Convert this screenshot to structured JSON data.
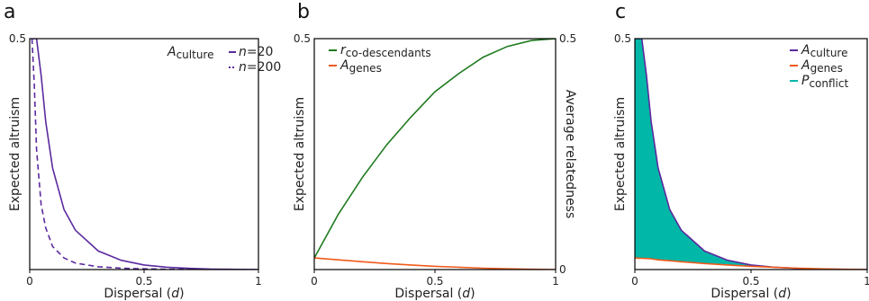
{
  "chart_data": [
    {
      "panel": "a",
      "type": "line",
      "xlabel": "Dispersal (d)",
      "ylabel": "Expected altruism",
      "xlim": [
        0,
        1
      ],
      "ylim": [
        0,
        0.5
      ],
      "xticks": [
        "0",
        "0.5",
        "1"
      ],
      "yticks": [
        "0.5"
      ],
      "legend_title": "A culture",
      "legend_position": "top-right",
      "x": [
        0.01,
        0.02,
        0.03,
        0.05,
        0.07,
        0.1,
        0.15,
        0.2,
        0.3,
        0.4,
        0.5,
        0.6,
        0.7,
        0.8,
        0.9,
        1.0
      ],
      "series": [
        {
          "name": "n=20",
          "color": "#5b2a9e",
          "style": "solid",
          "values": [
            0.5,
            0.5,
            0.5,
            0.42,
            0.32,
            0.22,
            0.13,
            0.085,
            0.04,
            0.02,
            0.01,
            0.005,
            0.0025,
            0.001,
            0.0004,
            0.0
          ]
        },
        {
          "name": "n=200",
          "color": "#5b2a9e",
          "style": "dashed",
          "values": [
            0.5,
            0.4,
            0.26,
            0.14,
            0.09,
            0.05,
            0.025,
            0.014,
            0.006,
            0.003,
            0.0015,
            0.0006,
            0.0003,
            0.0001,
            0.0,
            0.0
          ]
        }
      ]
    },
    {
      "panel": "b",
      "type": "line",
      "xlabel": "Dispersal (d)",
      "ylabel": "Expected altruism",
      "y2label": "Average relatedness",
      "xlim": [
        0,
        1
      ],
      "ylim": [
        0,
        0.5
      ],
      "xticks": [
        "0",
        "0.5",
        "1"
      ],
      "yticks": [
        "0.5"
      ],
      "y2ticks": [
        "0",
        "0.5"
      ],
      "legend_position": "top-left",
      "x": [
        0.0,
        0.1,
        0.2,
        0.3,
        0.4,
        0.5,
        0.6,
        0.7,
        0.8,
        0.9,
        1.0
      ],
      "series": [
        {
          "name": "r co-descendants",
          "color": "#1e7a1e",
          "axis": "right",
          "values": [
            0.025,
            0.12,
            0.2,
            0.27,
            0.33,
            0.385,
            0.425,
            0.46,
            0.483,
            0.496,
            0.5
          ]
        },
        {
          "name": "A genes",
          "color": "#f05a1a",
          "axis": "left",
          "values": [
            0.025,
            0.021,
            0.017,
            0.013,
            0.01,
            0.007,
            0.005,
            0.003,
            0.0015,
            0.0005,
            0.0
          ]
        }
      ]
    },
    {
      "panel": "c",
      "type": "area",
      "xlabel": "Dispersal (d)",
      "ylabel": "Expected altruism",
      "xlim": [
        0,
        1
      ],
      "ylim": [
        0,
        0.5
      ],
      "xticks": [
        "0",
        "0.5",
        "1"
      ],
      "yticks": [
        "0.5"
      ],
      "legend_position": "top-right",
      "x": [
        0.0,
        0.02,
        0.03,
        0.05,
        0.07,
        0.1,
        0.15,
        0.2,
        0.3,
        0.4,
        0.5,
        0.6,
        0.7,
        0.8,
        0.9,
        1.0
      ],
      "series": [
        {
          "name": "A culture",
          "color": "#5b2a9e",
          "values": [
            0.5,
            0.5,
            0.5,
            0.42,
            0.32,
            0.22,
            0.13,
            0.085,
            0.04,
            0.02,
            0.01,
            0.005,
            0.0025,
            0.001,
            0.0004,
            0.0
          ]
        },
        {
          "name": "A genes",
          "color": "#f05a1a",
          "values": [
            0.025,
            0.0246,
            0.0244,
            0.024,
            0.0234,
            0.021,
            0.019,
            0.017,
            0.013,
            0.01,
            0.007,
            0.005,
            0.003,
            0.0015,
            0.0005,
            0.0
          ]
        },
        {
          "name": "P conflict",
          "color": "#00b7a8",
          "kind": "fill_between A genes and A culture"
        }
      ]
    }
  ]
}
